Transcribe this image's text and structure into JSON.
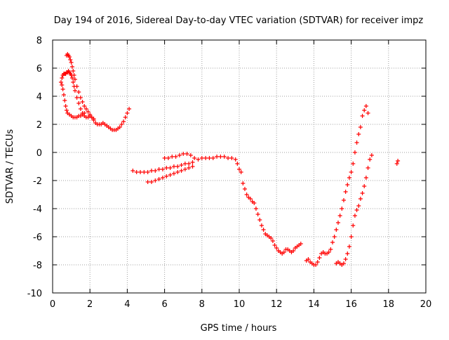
{
  "chart_data": {
    "type": "scatter",
    "title": "Day 194 of 2016, Sidereal Day-to-day VTEC variation (SDTVAR) for receiver impz",
    "xlabel": "GPS time / hours",
    "ylabel": "SDTVAR / TECUs",
    "xlim": [
      0,
      20
    ],
    "ylim": [
      -10,
      8
    ],
    "x_ticks": [
      0,
      2,
      4,
      6,
      8,
      10,
      12,
      14,
      16,
      18,
      20
    ],
    "y_ticks": [
      -10,
      -8,
      -6,
      -4,
      -2,
      0,
      2,
      4,
      6,
      8
    ],
    "grid": true,
    "marker": "+",
    "color": "#ff0000",
    "series": [
      {
        "name": "SDTVAR",
        "x": [
          0.45,
          0.5,
          0.55,
          0.6,
          0.65,
          0.7,
          0.75,
          0.8,
          0.85,
          0.9,
          0.95,
          1.0,
          1.05,
          1.1,
          1.15,
          1.2,
          1.3,
          1.4,
          1.5,
          1.6,
          1.7,
          1.8,
          1.9,
          2.0,
          2.1,
          2.2,
          2.3,
          2.4,
          2.5,
          2.6,
          2.7,
          2.8,
          2.9,
          3.0,
          3.1,
          3.2,
          3.3,
          3.4,
          3.5,
          3.6,
          3.7,
          3.8,
          3.9,
          4.0,
          4.1,
          0.5,
          0.55,
          0.6,
          0.65,
          0.7,
          0.75,
          0.8,
          0.9,
          1.0,
          1.1,
          1.2,
          1.3,
          1.4,
          1.5,
          1.6,
          1.7,
          0.75,
          0.8,
          0.85,
          0.9,
          0.95,
          1.0,
          1.05,
          1.1,
          1.15,
          1.2,
          1.3,
          1.4,
          1.5,
          1.6,
          1.7,
          1.8,
          1.9,
          2.0,
          2.1,
          2.2,
          4.3,
          4.5,
          4.7,
          4.9,
          5.1,
          5.3,
          5.5,
          5.7,
          5.9,
          6.1,
          6.3,
          6.5,
          6.7,
          6.9,
          7.1,
          7.3,
          7.5,
          5.1,
          5.3,
          5.5,
          5.7,
          5.9,
          6.1,
          6.3,
          6.5,
          6.7,
          6.9,
          7.1,
          7.3,
          7.5,
          6.0,
          6.2,
          6.4,
          6.6,
          6.8,
          7.0,
          7.2,
          7.4,
          7.6,
          7.8,
          8.0,
          8.2,
          8.4,
          8.6,
          8.8,
          9.0,
          9.2,
          9.4,
          9.6,
          9.8,
          9.9,
          10.0,
          10.1,
          10.2,
          10.3,
          10.4,
          10.5,
          10.6,
          10.7,
          10.8,
          10.9,
          11.0,
          11.1,
          11.2,
          11.3,
          11.4,
          11.5,
          11.6,
          11.7,
          11.8,
          11.9,
          12.0,
          12.1,
          12.2,
          12.3,
          12.4,
          12.5,
          12.6,
          12.7,
          12.8,
          12.9,
          13.0,
          13.1,
          13.2,
          13.3,
          13.6,
          13.7,
          13.8,
          13.9,
          14.0,
          14.1,
          14.2,
          14.3,
          14.4,
          14.5,
          14.6,
          14.7,
          14.8,
          14.9,
          15.0,
          15.1,
          15.2,
          15.3,
          15.4,
          15.5,
          15.6,
          15.7,
          15.8,
          15.9,
          16.0,
          16.1,
          16.2,
          16.3,
          16.4,
          16.5,
          16.6,
          16.7,
          16.8,
          16.9,
          15.2,
          15.3,
          15.4,
          15.5,
          15.6,
          15.7,
          15.8,
          15.9,
          16.0,
          16.1,
          16.2,
          16.3,
          16.4,
          16.5,
          16.6,
          16.7,
          16.8,
          16.9,
          17.0,
          17.1,
          18.45,
          18.5
        ],
        "y": [
          5.0,
          5.3,
          5.5,
          5.6,
          5.6,
          5.6,
          5.7,
          5.7,
          5.8,
          5.7,
          5.6,
          5.5,
          5.3,
          5.0,
          4.7,
          4.4,
          3.9,
          3.5,
          3.1,
          2.8,
          2.6,
          2.5,
          2.5,
          2.6,
          2.5,
          2.3,
          2.1,
          2.0,
          2.0,
          2.0,
          2.1,
          2.0,
          1.9,
          1.8,
          1.7,
          1.6,
          1.6,
          1.6,
          1.7,
          1.8,
          2.0,
          2.2,
          2.5,
          2.8,
          3.1,
          4.8,
          4.5,
          4.1,
          3.7,
          3.3,
          3.0,
          2.8,
          2.7,
          2.6,
          2.5,
          2.5,
          2.5,
          2.6,
          2.6,
          2.7,
          2.8,
          6.9,
          7.0,
          6.9,
          6.8,
          6.6,
          6.4,
          6.1,
          5.8,
          5.5,
          5.2,
          4.7,
          4.3,
          3.9,
          3.6,
          3.3,
          3.1,
          2.9,
          2.7,
          2.5,
          2.4,
          -1.3,
          -1.4,
          -1.4,
          -1.4,
          -1.4,
          -1.3,
          -1.3,
          -1.2,
          -1.2,
          -1.1,
          -1.1,
          -1.0,
          -1.0,
          -0.9,
          -0.8,
          -0.8,
          -0.7,
          -2.1,
          -2.1,
          -2.0,
          -1.9,
          -1.8,
          -1.7,
          -1.6,
          -1.5,
          -1.4,
          -1.3,
          -1.2,
          -1.1,
          -1.0,
          -0.4,
          -0.4,
          -0.3,
          -0.3,
          -0.2,
          -0.1,
          -0.1,
          -0.2,
          -0.4,
          -0.5,
          -0.4,
          -0.4,
          -0.4,
          -0.4,
          -0.3,
          -0.3,
          -0.3,
          -0.4,
          -0.4,
          -0.5,
          -0.8,
          -1.2,
          -1.4,
          -2.2,
          -2.6,
          -3.0,
          -3.2,
          -3.3,
          -3.5,
          -3.6,
          -4.0,
          -4.4,
          -4.8,
          -5.2,
          -5.5,
          -5.8,
          -5.9,
          -6.0,
          -6.1,
          -6.3,
          -6.6,
          -6.8,
          -7.0,
          -7.1,
          -7.2,
          -7.1,
          -6.9,
          -6.9,
          -7.0,
          -7.1,
          -7.0,
          -6.8,
          -6.7,
          -6.6,
          -6.5,
          -7.7,
          -7.6,
          -7.8,
          -7.9,
          -8.0,
          -8.0,
          -7.8,
          -7.5,
          -7.2,
          -7.1,
          -7.2,
          -7.2,
          -7.1,
          -6.9,
          -6.4,
          -6.0,
          -5.5,
          -5.0,
          -4.5,
          -4.0,
          -3.4,
          -2.8,
          -2.3,
          -1.8,
          -1.4,
          -0.8,
          0.0,
          0.7,
          1.3,
          1.8,
          2.6,
          3.0,
          3.3,
          2.8,
          -7.9,
          -7.8,
          -7.9,
          -8.0,
          -7.9,
          -7.6,
          -7.2,
          -6.7,
          -6.0,
          -5.2,
          -4.5,
          -4.1,
          -3.8,
          -3.3,
          -2.9,
          -2.4,
          -1.8,
          -1.1,
          -0.5,
          -0.2,
          -0.8,
          -0.6
        ]
      }
    ]
  }
}
